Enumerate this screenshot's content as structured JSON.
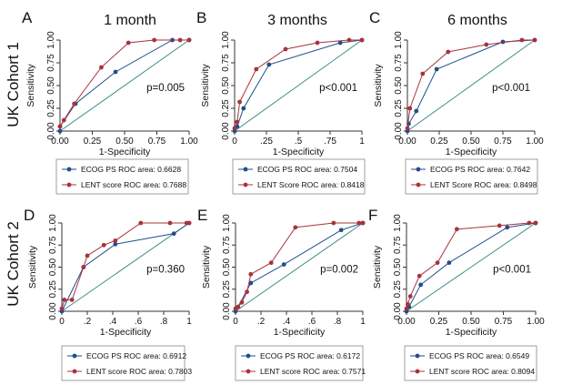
{
  "periods": [
    "1 month",
    "3 months",
    "6 months"
  ],
  "cohorts": [
    "UK Cohort 1",
    "UK Cohort 2"
  ],
  "colors": {
    "ecog": "#1f4e8c",
    "lent": "#a8323c",
    "diagonal": "#3a8f86",
    "axis": "#333333"
  },
  "chart_data": [
    {
      "type": "line",
      "panel": "A",
      "period": "1 month",
      "cohort": "UK Cohort 1",
      "xlabel": "1-Specificity",
      "ylabel": "Sensitivity",
      "xlim": [
        0,
        1
      ],
      "ylim": [
        0,
        1
      ],
      "xticks": [
        "0.00",
        "0.25",
        "0.50",
        "0.75",
        "1.00"
      ],
      "yticks": [
        "0.00",
        "0.25",
        "0.50",
        "0.75",
        "1.00"
      ],
      "annotation": "p=0.005",
      "legend": [
        "ECOG PS ROC area: 0.6628",
        "LENT score ROC area: 0.7688"
      ],
      "series": [
        {
          "name": "ECOG PS",
          "color": "#1f4e8c",
          "x": [
            0,
            0,
            0.12,
            0.43,
            0.87,
            1.0
          ],
          "y": [
            0,
            0.05,
            0.3,
            0.65,
            1.0,
            1.0
          ]
        },
        {
          "name": "LENT score",
          "color": "#a8323c",
          "x": [
            0,
            0.03,
            0.11,
            0.32,
            0.53,
            0.73,
            0.93,
            1.0
          ],
          "y": [
            0.05,
            0.12,
            0.3,
            0.7,
            0.97,
            1.0,
            1.0,
            1.0
          ]
        }
      ]
    },
    {
      "type": "line",
      "panel": "B",
      "period": "3 months",
      "cohort": "UK Cohort 1",
      "xlabel": "1-Specificity",
      "ylabel": "Sensitivity",
      "xlim": [
        0,
        1
      ],
      "ylim": [
        0,
        1
      ],
      "xticks": [
        "0",
        ".25",
        ".5",
        ".75",
        "1"
      ],
      "yticks": [
        "0.00",
        "0.25",
        "0.50",
        "0.75",
        "1.00"
      ],
      "annotation": "p<0.001",
      "legend": [
        "ECOG PS ROC area: 0.7504",
        "LENT Score ROC area: 0.8418"
      ],
      "series": [
        {
          "name": "ECOG PS",
          "color": "#1f4e8c",
          "x": [
            0,
            0.02,
            0.07,
            0.27,
            0.83,
            1.0
          ],
          "y": [
            0,
            0.05,
            0.25,
            0.73,
            0.97,
            1.0
          ]
        },
        {
          "name": "LENT score",
          "color": "#a8323c",
          "x": [
            0,
            0.02,
            0.04,
            0.17,
            0.4,
            0.65,
            0.9,
            1.0
          ],
          "y": [
            0.03,
            0.1,
            0.32,
            0.68,
            0.9,
            0.97,
            1.0,
            1.0
          ]
        }
      ]
    },
    {
      "type": "line",
      "panel": "C",
      "period": "6 months",
      "cohort": "UK Cohort 1",
      "xlabel": "1-Specificity",
      "ylabel": "Sensitivity",
      "xlim": [
        0,
        1
      ],
      "ylim": [
        0,
        1
      ],
      "xticks": [
        "0.00",
        "0.25",
        "0.50",
        "0.75",
        "1.00"
      ],
      "yticks": [
        "0.00",
        "0.25",
        "0.50",
        "0.75",
        "1.00"
      ],
      "annotation": "p<0.001",
      "legend": [
        "ECOG PS ROC area: 0.7642",
        "LENT Score ROC area: 0.8498"
      ],
      "series": [
        {
          "name": "ECOG PS",
          "color": "#1f4e8c",
          "x": [
            0,
            0.01,
            0.07,
            0.23,
            0.75,
            1.0
          ],
          "y": [
            0,
            0.08,
            0.22,
            0.68,
            0.98,
            1.0
          ]
        },
        {
          "name": "LENT score",
          "color": "#a8323c",
          "x": [
            0,
            0.02,
            0.12,
            0.32,
            0.62,
            0.9,
            1.0
          ],
          "y": [
            0.03,
            0.25,
            0.63,
            0.87,
            0.95,
            1.0,
            1.0
          ]
        }
      ]
    },
    {
      "type": "line",
      "panel": "D",
      "period": "1 month",
      "cohort": "UK Cohort 2",
      "xlabel": "1-Specificity",
      "ylabel": "Sensitivity",
      "xlim": [
        0,
        1
      ],
      "ylim": [
        0,
        1
      ],
      "xticks": [
        "0",
        ".2",
        ".4",
        ".6",
        ".8",
        "1"
      ],
      "yticks": [
        "0.00",
        "0.25",
        "0.50",
        "0.75",
        "1.00"
      ],
      "annotation": "p=0.360",
      "legend": [
        "ECOG PS ROC area: 0.6912",
        "LENT score ROC area: 0.7803"
      ],
      "series": [
        {
          "name": "ECOG PS",
          "color": "#1f4e8c",
          "x": [
            0,
            0.17,
            0.42,
            0.88,
            1.0
          ],
          "y": [
            0,
            0.5,
            0.76,
            0.88,
            1.0
          ]
        },
        {
          "name": "LENT score",
          "color": "#a8323c",
          "x": [
            0,
            0.02,
            0.08,
            0.17,
            0.2,
            0.33,
            0.42,
            0.62,
            0.85,
            0.98,
            1.0
          ],
          "y": [
            0.03,
            0.13,
            0.13,
            0.5,
            0.63,
            0.75,
            0.8,
            1.0,
            1.0,
            1.0,
            1.0
          ]
        }
      ]
    },
    {
      "type": "line",
      "panel": "E",
      "period": "3 months",
      "cohort": "UK Cohort 2",
      "xlabel": "1-Specificity",
      "ylabel": "Sensitivity",
      "xlim": [
        0,
        1
      ],
      "ylim": [
        0,
        1
      ],
      "xticks": [
        "0",
        ".2",
        ".4",
        ".6",
        ".8",
        "1"
      ],
      "yticks": [
        "0.00",
        "0.25",
        "0.50",
        "0.75",
        "1.00"
      ],
      "annotation": "p=0.002",
      "legend": [
        "ECOG PS ROC area: 0.6172",
        "LENT score ROC area: 0.7571"
      ],
      "series": [
        {
          "name": "ECOG PS",
          "color": "#1f4e8c",
          "x": [
            0,
            0.02,
            0.12,
            0.38,
            0.83,
            1.0
          ],
          "y": [
            0,
            0.05,
            0.32,
            0.53,
            0.92,
            1.0
          ]
        },
        {
          "name": "LENT score",
          "color": "#a8323c",
          "x": [
            0,
            0.02,
            0.05,
            0.09,
            0.12,
            0.28,
            0.47,
            0.77,
            0.97,
            1.0
          ],
          "y": [
            0.03,
            0.05,
            0.1,
            0.22,
            0.42,
            0.55,
            0.95,
            1.0,
            1.0,
            1.0
          ]
        }
      ]
    },
    {
      "type": "line",
      "panel": "F",
      "period": "6 months",
      "cohort": "UK Cohort 2",
      "xlabel": "1-Specificity",
      "ylabel": "Sensitivity",
      "xlim": [
        0,
        1
      ],
      "ylim": [
        0,
        1
      ],
      "xticks": [
        "0.00",
        "0.25",
        "0.50",
        "0.75",
        "1.00"
      ],
      "yticks": [
        "0.00",
        "0.25",
        "0.50",
        "0.75",
        "1.00"
      ],
      "annotation": "p<0.001",
      "legend": [
        "ECOG PS ROC area: 0.6549",
        "LENT score ROC area: 0.8094"
      ],
      "series": [
        {
          "name": "ECOG PS",
          "color": "#1f4e8c",
          "x": [
            0,
            0.02,
            0.11,
            0.33,
            0.78,
            1.0
          ],
          "y": [
            0,
            0.05,
            0.3,
            0.55,
            0.95,
            1.0
          ]
        },
        {
          "name": "LENT score",
          "color": "#a8323c",
          "x": [
            0,
            0.01,
            0.03,
            0.1,
            0.24,
            0.39,
            0.72,
            0.95,
            1.0
          ],
          "y": [
            0.03,
            0.08,
            0.17,
            0.4,
            0.55,
            0.93,
            0.97,
            1.0,
            1.0
          ]
        }
      ]
    }
  ]
}
